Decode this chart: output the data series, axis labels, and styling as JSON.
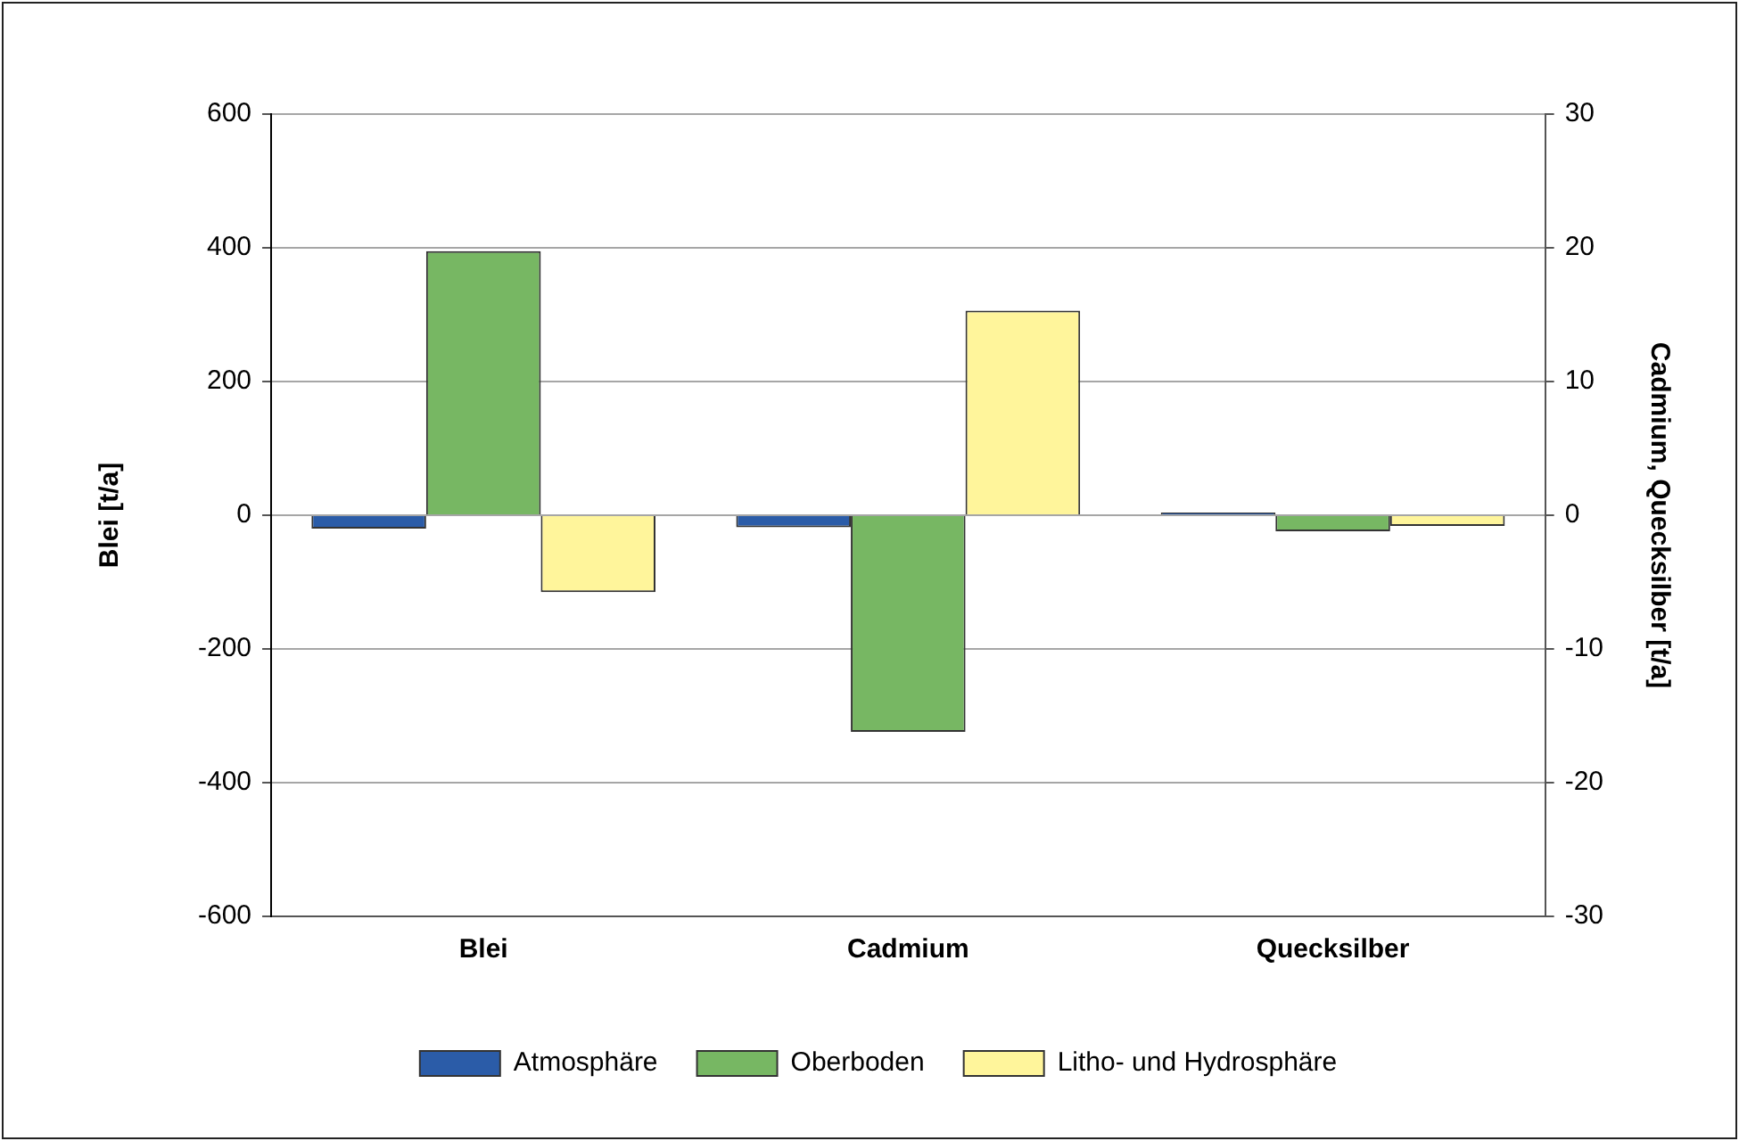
{
  "chart_data": {
    "type": "bar",
    "categories": [
      "Blei",
      "Cadmium",
      "Quecksilber"
    ],
    "ylabel": "Blei [t/a]",
    "y2label": "Cadmium, Quecksilber [t/a]",
    "series": [
      {
        "name": "Atmosphäre",
        "color": "#2b5ca8",
        "values": [
          -20,
          null,
          null
        ]
      },
      {
        "name": "Oberboden",
        "color": "#77b763",
        "values": [
          395,
          null,
          null
        ]
      },
      {
        "name": "Litho- und Hydrosphäre",
        "color": "#fff59b",
        "values": [
          -115,
          null,
          null
        ]
      },
      {
        "color": "#2b5ca8",
        "axis": "y2",
        "values": [
          null,
          -0.9,
          0.2
        ]
      },
      {
        "color": "#77b763",
        "axis": "y2",
        "values": [
          null,
          -16.2,
          -1.2
        ]
      },
      {
        "color": "#fff59b",
        "axis": "y2",
        "values": [
          null,
          15.3,
          -0.8
        ]
      }
    ],
    "ylim": [
      -600,
      600
    ],
    "yticks": [
      -600,
      -400,
      -200,
      0,
      200,
      400,
      600
    ],
    "y2lim": [
      -30,
      30
    ],
    "y2ticks": [
      -30,
      -20,
      -10,
      0,
      10,
      20,
      30
    ],
    "grid": "y",
    "legend": "bottom"
  }
}
